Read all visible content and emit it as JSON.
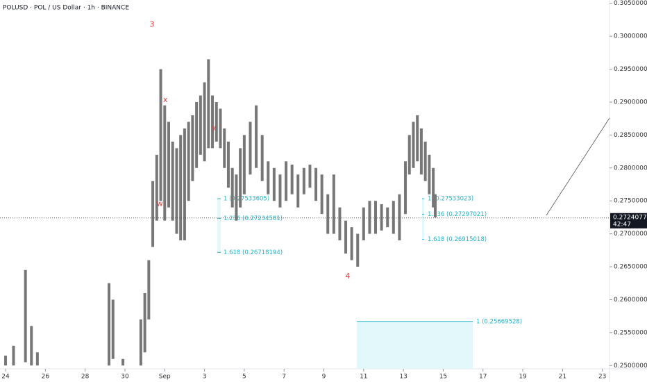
{
  "chart_data": {
    "type": "hilo",
    "title": "POLUSD · POL / US Dollar · 1h · BINANCE",
    "color": "#777777",
    "x": [
      0,
      0.4,
      1.0,
      1.3,
      1.6,
      5.2,
      5.4,
      5.9,
      6.8,
      7.0,
      7.2,
      7.4,
      7.6,
      7.8,
      8.0,
      8.2,
      8.4,
      8.6,
      8.8,
      9.0,
      9.2,
      9.4,
      9.6,
      9.8,
      10.0,
      10.2,
      10.4,
      10.6,
      10.8,
      11.0,
      11.2,
      11.4,
      11.6,
      11.8,
      12.0,
      12.3,
      12.6,
      12.9,
      13.2,
      13.5,
      13.8,
      14.1,
      14.4,
      14.7,
      15.0,
      15.3,
      15.6,
      15.9,
      16.2,
      16.5,
      16.8,
      17.1,
      17.4,
      17.7,
      18.0,
      18.3,
      18.6,
      18.9,
      19.2,
      19.5,
      19.8,
      20.1,
      20.3,
      20.5,
      20.7,
      20.9,
      21.1,
      21.3,
      21.5,
      21.6
    ],
    "high": [
      0.2515,
      0.253,
      0.2645,
      0.256,
      0.252,
      0.2625,
      0.26,
      0.251,
      0.257,
      0.261,
      0.266,
      0.278,
      0.282,
      0.295,
      0.2895,
      0.287,
      0.284,
      0.283,
      0.285,
      0.286,
      0.287,
      0.288,
      0.29,
      0.291,
      0.293,
      0.2965,
      0.291,
      0.29,
      0.289,
      0.286,
      0.284,
      0.28,
      0.279,
      0.283,
      0.285,
      0.287,
      0.2895,
      0.285,
      0.281,
      0.28,
      0.279,
      0.281,
      0.2805,
      0.279,
      0.28,
      0.2805,
      0.28,
      0.279,
      0.276,
      0.279,
      0.274,
      0.272,
      0.271,
      0.27,
      0.274,
      0.275,
      0.275,
      0.2745,
      0.274,
      0.275,
      0.276,
      0.281,
      0.285,
      0.287,
      0.288,
      0.286,
      0.284,
      0.282,
      0.28,
      0.276
    ],
    "low": [
      0.25,
      0.25,
      0.2505,
      0.25,
      0.25,
      0.25,
      0.251,
      0.25,
      0.25,
      0.252,
      0.257,
      0.268,
      0.272,
      0.275,
      0.272,
      0.274,
      0.272,
      0.27,
      0.269,
      0.269,
      0.275,
      0.278,
      0.28,
      0.282,
      0.281,
      0.283,
      0.283,
      0.284,
      0.283,
      0.28,
      0.277,
      0.274,
      0.272,
      0.274,
      0.276,
      0.279,
      0.28,
      0.278,
      0.276,
      0.275,
      0.274,
      0.275,
      0.276,
      0.274,
      0.276,
      0.277,
      0.275,
      0.273,
      0.27,
      0.27,
      0.269,
      0.267,
      0.266,
      0.265,
      0.269,
      0.27,
      0.27,
      0.2705,
      0.271,
      0.27,
      0.269,
      0.273,
      0.279,
      0.28,
      0.281,
      0.279,
      0.278,
      0.276,
      0.274,
      0.2725
    ],
    "xlim": [
      -0.28,
      30.36
    ],
    "xticks": [
      {
        "value": 0,
        "label": "24"
      },
      {
        "value": 2,
        "label": "26"
      },
      {
        "value": 4,
        "label": "28"
      },
      {
        "value": 6,
        "label": "30"
      },
      {
        "value": 8,
        "label": "Sep"
      },
      {
        "value": 10,
        "label": "3"
      },
      {
        "value": 12,
        "label": "5"
      },
      {
        "value": 14,
        "label": "7"
      },
      {
        "value": 16,
        "label": "9"
      },
      {
        "value": 18,
        "label": "11"
      },
      {
        "value": 20,
        "label": "13"
      },
      {
        "value": 22,
        "label": "15"
      },
      {
        "value": 24,
        "label": "17"
      },
      {
        "value": 26,
        "label": "19"
      },
      {
        "value": 28,
        "label": "21"
      },
      {
        "value": 30,
        "label": "23"
      }
    ],
    "ylim": [
      0.2495,
      0.3055
    ],
    "yticks": [
      {
        "value": 0.305,
        "label": "0.30500000"
      },
      {
        "value": 0.3,
        "label": "0.30000000"
      },
      {
        "value": 0.295,
        "label": "0.29500000"
      },
      {
        "value": 0.29,
        "label": "0.29000000"
      },
      {
        "value": 0.285,
        "label": "0.28500000"
      },
      {
        "value": 0.28,
        "label": "0.28000000"
      },
      {
        "value": 0.275,
        "label": "0.27500000"
      },
      {
        "value": 0.27,
        "label": "0.27000000"
      },
      {
        "value": 0.265,
        "label": "0.26500000"
      },
      {
        "value": 0.26,
        "label": "0.26000000"
      },
      {
        "value": 0.255,
        "label": "0.25500000"
      },
      {
        "value": 0.25,
        "label": "0.25000000"
      }
    ],
    "current_price": {
      "value": 0.27240777,
      "countdown": "42:47"
    },
    "annotations": [
      {
        "text": "3",
        "x": 7.36,
        "y": 0.30175
      },
      {
        "text": "x",
        "x": 8.03,
        "y": 0.2903
      },
      {
        "text": "w",
        "x": 7.75,
        "y": 0.27456
      },
      {
        "text": "y",
        "x": 10.47,
        "y": 0.2861
      },
      {
        "text": "4",
        "x": 17.2,
        "y": 0.26354
      }
    ],
    "fibs": [
      [
        {
          "label": "1 (0.27533605)",
          "value": 0.27533605
        },
        {
          "label": "1.236 (0.27234581)",
          "value": 0.27234581
        },
        {
          "label": "1.618 (0.26718194)",
          "value": 0.26718194
        }
      ],
      [
        {
          "label": "1 (0.27533023)",
          "value": 0.27533023
        },
        {
          "label": "1.236 (0.27297021)",
          "value": 0.27297021
        },
        {
          "label": "1.618 (0.26915018)",
          "value": 0.26915018
        }
      ],
      [
        {
          "label": "1 (0.25669528)",
          "value": 0.25669528
        }
      ]
    ]
  }
}
